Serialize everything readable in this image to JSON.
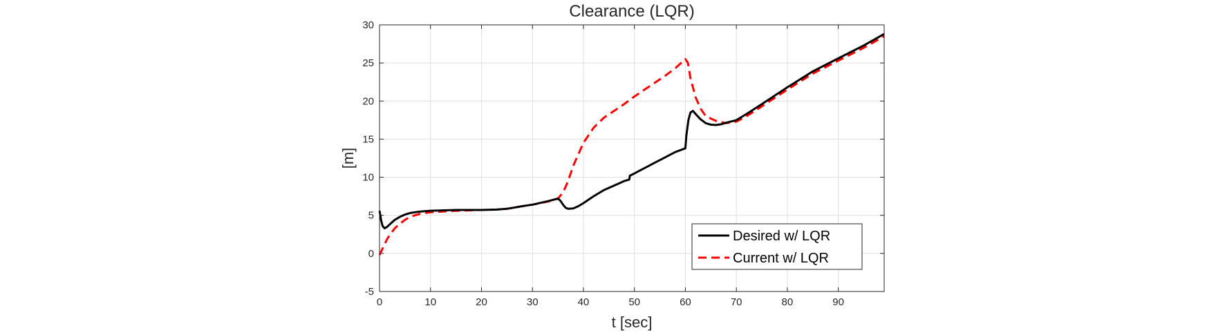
{
  "chart_data": {
    "type": "line",
    "title": "Clearance (LQR)",
    "xlabel": "t [sec]",
    "ylabel": "[m]",
    "xlim": [
      0,
      99
    ],
    "ylim": [
      -5,
      30
    ],
    "xticks": [
      0,
      10,
      20,
      30,
      40,
      50,
      60,
      70,
      80,
      90
    ],
    "yticks": [
      -5,
      0,
      5,
      10,
      15,
      20,
      25,
      30
    ],
    "grid": true,
    "legend_position": "bottom-right",
    "series": [
      {
        "name": "Desired w/ LQR",
        "color": "#000000",
        "style": "solid",
        "x": [
          0,
          0.3,
          0.6,
          1.0,
          1.5,
          2,
          3,
          4,
          5,
          6,
          8,
          10,
          15,
          20,
          23,
          25,
          28,
          30,
          33,
          35,
          35.5,
          36,
          36.5,
          37,
          38,
          39,
          40,
          42,
          44,
          46,
          48,
          49,
          49.1,
          50,
          52,
          54,
          56,
          58,
          60,
          60.2,
          60.6,
          61,
          61.5,
          62,
          63,
          64,
          65,
          66,
          67,
          68,
          70,
          72,
          75,
          80,
          85,
          90,
          95,
          99
        ],
        "y": [
          5.6,
          4.4,
          3.6,
          3.3,
          3.5,
          3.8,
          4.4,
          4.8,
          5.1,
          5.3,
          5.5,
          5.6,
          5.7,
          5.7,
          5.75,
          5.85,
          6.2,
          6.4,
          6.85,
          7.2,
          6.9,
          6.4,
          6.0,
          5.85,
          5.9,
          6.2,
          6.6,
          7.5,
          8.3,
          8.9,
          9.5,
          9.7,
          10.2,
          10.5,
          11.2,
          11.9,
          12.6,
          13.3,
          13.8,
          15.5,
          17.5,
          18.5,
          18.7,
          18.3,
          17.6,
          17.1,
          16.9,
          16.85,
          16.95,
          17.15,
          17.5,
          18.3,
          19.6,
          21.8,
          23.9,
          25.6,
          27.3,
          28.8
        ]
      },
      {
        "name": "Current w/ LQR",
        "color": "#ff0000",
        "style": "dashed",
        "x": [
          0,
          0.5,
          1,
          1.5,
          2,
          3,
          4,
          5,
          6,
          8,
          10,
          15,
          20,
          23,
          25,
          28,
          30,
          33,
          35,
          36,
          37,
          38,
          40,
          42,
          44,
          46,
          48,
          50,
          52,
          54,
          56,
          58,
          60,
          60.5,
          61,
          62,
          63,
          64,
          66,
          68,
          70,
          72,
          75,
          80,
          85,
          90,
          95,
          99
        ],
        "y": [
          -0.2,
          0.5,
          1.2,
          1.9,
          2.4,
          3.3,
          3.9,
          4.4,
          4.8,
          5.2,
          5.4,
          5.6,
          5.7,
          5.75,
          5.85,
          6.2,
          6.4,
          6.8,
          7.2,
          8.0,
          9.5,
          11.5,
          14.5,
          16.5,
          17.8,
          18.7,
          19.6,
          20.6,
          21.5,
          22.4,
          23.3,
          24.3,
          25.5,
          25.0,
          23.0,
          20.5,
          19.0,
          18.0,
          17.4,
          17.1,
          17.3,
          18.0,
          19.3,
          21.5,
          23.6,
          25.3,
          27.0,
          28.5
        ]
      }
    ]
  }
}
